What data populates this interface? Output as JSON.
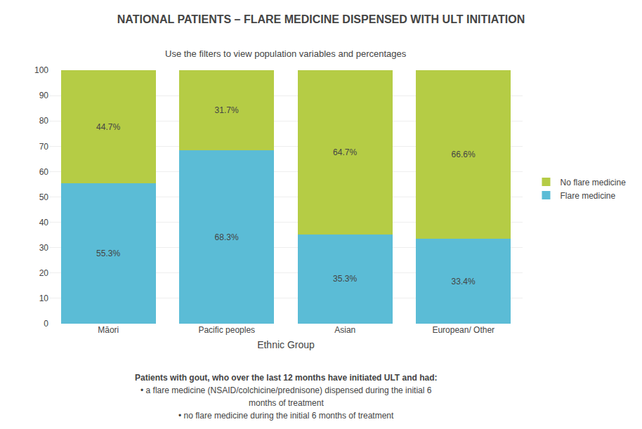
{
  "chart_data": {
    "type": "bar",
    "stacked": true,
    "title": "NATIONAL PATIENTS – FLARE MEDICINE DISPENSED WITH ULT INITIATION",
    "subtitle": "Use the filters to view population variables and percentages",
    "xlabel": "Ethnic Group",
    "categories": [
      "Māori",
      "Pacific peoples",
      "Asian",
      "European/ Other"
    ],
    "series": [
      {
        "name": "Flare medicine",
        "color": "#5bbcd6",
        "values": [
          55.3,
          68.3,
          35.3,
          33.4
        ],
        "value_labels": [
          "55.3%",
          "68.3%",
          "35.3%",
          "33.4%"
        ]
      },
      {
        "name": "No flare medicine",
        "color": "#b5cc45",
        "values": [
          44.7,
          31.7,
          64.7,
          66.6
        ],
        "value_labels": [
          "44.7%",
          "31.7%",
          "64.7%",
          "66.6%"
        ]
      }
    ],
    "ylim": [
      0,
      100
    ],
    "yticks": [
      0,
      10,
      20,
      30,
      40,
      50,
      60,
      70,
      80,
      90,
      100
    ],
    "grid": true,
    "legend": "right",
    "data_labels": true,
    "annotations": [
      "Patients with gout, who over the last 12 months have initiated ULT and had:",
      "• a flare medicine (NSAID/colchicine/prednisone) dispensed during the initial 6",
      "months of treatment",
      "• no flare medicine during the initial 6 months of treatment"
    ]
  }
}
